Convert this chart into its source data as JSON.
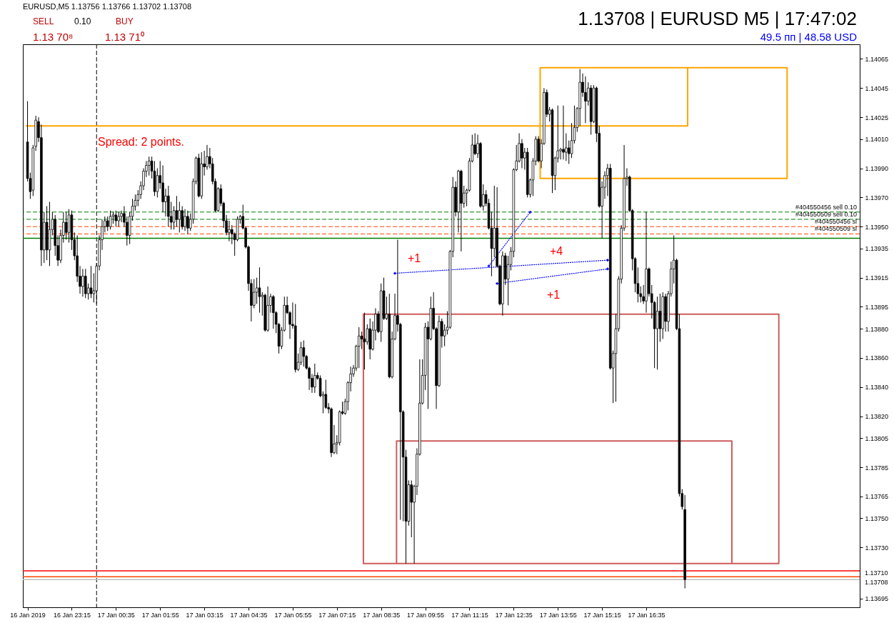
{
  "chart_data": {
    "type": "candlestick",
    "title": "EURUSD,M5 1.13756 1.13766 1.13702 1.13708",
    "color": "#000000",
    "grid": false,
    "annotations": [
      "1.13708 | EURUSD M5 | 17:47:02",
      "49.5 пп | 48.58 USD",
      "SELL",
      "0.10",
      "BUY",
      "1.13 70⁸",
      "1.13 71⁰",
      "Spread: 2 points.",
      "+1",
      "+4",
      "+1"
    ],
    "xlim": [
      "2019-01-16T21:53",
      "2019-01-17T22:55"
    ],
    "xticks": [
      {
        "value": "2019-01-16T21:55",
        "label": "16 Jan 2019"
      },
      {
        "value": "2019-01-16T23:15",
        "label": "16 Jan 23:15"
      },
      {
        "value": "2019-01-17T00:35",
        "label": "17 Jan 00:35"
      },
      {
        "value": "2019-01-17T01:55",
        "label": "17 Jan 01:55"
      },
      {
        "value": "2019-01-17T03:15",
        "label": "17 Jan 03:15"
      },
      {
        "value": "2019-01-17T04:35",
        "label": "17 Jan 04:35"
      },
      {
        "value": "2019-01-17T05:55",
        "label": "17 Jan 05:55"
      },
      {
        "value": "2019-01-17T07:15",
        "label": "17 Jan 07:15"
      },
      {
        "value": "2019-01-17T08:35",
        "label": "17 Jan 08:35"
      },
      {
        "value": "2019-01-17T09:55",
        "label": "17 Jan 09:55"
      },
      {
        "value": "2019-01-17T11:15",
        "label": "17 Jan 11:15"
      },
      {
        "value": "2019-01-17T12:35",
        "label": "17 Jan 12:35"
      },
      {
        "value": "2019-01-17T13:55",
        "label": "17 Jan 13:55"
      },
      {
        "value": "2019-01-17T15:15",
        "label": "17 Jan 15:15"
      },
      {
        "value": "2019-01-17T16:35",
        "label": "17 Jan 16:35"
      }
    ],
    "ylim": [
      1.13689,
      1.14075
    ],
    "yticks": [
      1.14065,
      1.14045,
      1.14025,
      {
        "value": 1.1401,
        "label": "1.14010"
      },
      {
        "value": 1.1399,
        "label": "1.13990"
      },
      {
        "value": 1.1397,
        "label": "1.13970"
      },
      {
        "value": 1.1395,
        "label": "1.13950"
      },
      1.13935,
      1.13915,
      1.13895,
      {
        "value": 1.1388,
        "label": "1.13880"
      },
      {
        "value": 1.1386,
        "label": "1.13860"
      },
      {
        "value": 1.1384,
        "label": "1.13840"
      },
      {
        "value": 1.1382,
        "label": "1.13820"
      },
      1.13805,
      1.13785,
      1.13765,
      {
        "value": 1.1375,
        "label": "1.13750"
      },
      {
        "value": 1.1373,
        "label": "1.13730"
      },
      1.13695
    ],
    "ref_lines": [
      {
        "axis": "x",
        "value": "2019-01-17T00:00",
        "color": "#000000",
        "line_style": "dashed"
      },
      {
        "axis": "y",
        "value": 1.13942,
        "color": "#008000",
        "line_style": "solid"
      },
      {
        "axis": "y",
        "value": 1.1396,
        "label": "#404550456 sell 0.10",
        "color": "#008000",
        "line_style": "dashed"
      },
      {
        "axis": "y",
        "value": 1.13955,
        "label": "#404550509 sell 0.10",
        "color": "#008000",
        "line_style": "dashed"
      },
      {
        "axis": "y",
        "value": 1.1395,
        "label": "#404550456 sl",
        "color": "#ff4500",
        "line_style": "dashed"
      },
      {
        "axis": "y",
        "value": 1.13945,
        "label": "#404550509 sl",
        "color": "#ff4500",
        "line_style": "dashed"
      },
      {
        "axis": "y",
        "value": 1.13714,
        "color": "#ff0000",
        "line_style": "solid"
      },
      {
        "axis": "y",
        "value": 1.1371,
        "label": "1.13710",
        "color": "#ff4500",
        "line_style": "solid"
      },
      {
        "axis": "y",
        "value": 1.13708,
        "label": "1.13708",
        "color": "#c0c0c0",
        "line_style": "solid"
      }
    ],
    "series": [
      {
        "type": "line",
        "color": "#ffa500",
        "line_style": "solid",
        "x": [
          "2019-01-16T21:53",
          "2019-01-17T17:50",
          "2019-01-17T17:50",
          "2019-01-17T20:50",
          "2019-01-17T20:50",
          "2019-01-17T13:23",
          "2019-01-17T13:23",
          "2019-01-17T17:50"
        ],
        "values": [
          1.14019,
          1.14019,
          1.14059,
          1.14059,
          1.13983,
          1.13983,
          1.14059,
          1.14059
        ]
      },
      {
        "type": "line",
        "color": "#cd5c5c",
        "line_style": "solid",
        "x": [
          "2019-01-17T19:10",
          "2019-01-17T20:35",
          "2019-01-17T20:35",
          "2019-01-17T08:03",
          "2019-01-17T08:03",
          "2019-01-17T09:03",
          "2019-01-17T09:03",
          "2019-01-17T19:10",
          "2019-01-17T19:10",
          "2019-01-17T09:03"
        ],
        "values": [
          1.13719,
          1.13719,
          1.1389,
          1.1389,
          1.13719,
          1.13719,
          1.13803,
          1.13803,
          1.13719,
          1.13719
        ]
      },
      {
        "type": "line",
        "color": "#0000ff",
        "line_style": "dotted",
        "marker": "cross",
        "x": [
          "2019-01-17T09:00",
          "2019-01-17T15:25"
        ],
        "values": [
          1.13918,
          1.13927
        ]
      },
      {
        "type": "line",
        "color": "#0000ff",
        "line_style": "dotted",
        "marker": "cross",
        "x": [
          "2019-01-17T11:50",
          "2019-01-17T13:05"
        ],
        "values": [
          1.13923,
          1.1396
        ]
      },
      {
        "type": "line",
        "color": "#0000ff",
        "line_style": "dotted",
        "marker": "cross",
        "x": [
          "2019-01-17T12:05",
          "2019-01-17T15:25"
        ],
        "values": [
          1.13911,
          1.13921
        ]
      }
    ],
    "x": [
      "2019-01-16T21:55",
      "2019-01-16T22:00",
      "2019-01-16T22:05",
      "2019-01-16T22:10",
      "2019-01-16T22:15",
      "2019-01-16T22:20",
      "2019-01-16T22:25",
      "2019-01-16T22:30",
      "2019-01-16T22:35",
      "2019-01-16T22:40",
      "2019-01-16T22:45",
      "2019-01-16T22:50",
      "2019-01-16T22:55",
      "2019-01-16T23:00",
      "2019-01-16T23:05",
      "2019-01-16T23:10",
      "2019-01-16T23:15",
      "2019-01-16T23:20",
      "2019-01-16T23:25",
      "2019-01-16T23:30",
      "2019-01-16T23:35",
      "2019-01-16T23:40",
      "2019-01-16T23:45",
      "2019-01-16T23:50",
      "2019-01-16T23:55",
      "2019-01-17T00:00",
      "2019-01-17T00:05",
      "2019-01-17T00:10",
      "2019-01-17T00:15",
      "2019-01-17T00:20",
      "2019-01-17T00:25",
      "2019-01-17T00:30",
      "2019-01-17T00:35",
      "2019-01-17T00:40",
      "2019-01-17T00:45",
      "2019-01-17T00:50",
      "2019-01-17T00:55",
      "2019-01-17T01:00",
      "2019-01-17T01:05",
      "2019-01-17T01:10",
      "2019-01-17T01:15",
      "2019-01-17T01:20",
      "2019-01-17T01:25",
      "2019-01-17T01:30",
      "2019-01-17T01:35",
      "2019-01-17T01:40",
      "2019-01-17T01:45",
      "2019-01-17T01:50",
      "2019-01-17T01:55",
      "2019-01-17T02:00",
      "2019-01-17T02:05",
      "2019-01-17T02:10",
      "2019-01-17T02:15",
      "2019-01-17T02:20",
      "2019-01-17T02:25",
      "2019-01-17T02:30",
      "2019-01-17T02:35",
      "2019-01-17T02:40",
      "2019-01-17T02:45",
      "2019-01-17T02:50",
      "2019-01-17T02:55",
      "2019-01-17T03:00",
      "2019-01-17T03:05",
      "2019-01-17T03:10",
      "2019-01-17T03:15",
      "2019-01-17T03:20",
      "2019-01-17T03:25",
      "2019-01-17T03:30",
      "2019-01-17T03:35",
      "2019-01-17T03:40",
      "2019-01-17T03:45",
      "2019-01-17T03:50",
      "2019-01-17T03:55",
      "2019-01-17T04:00",
      "2019-01-17T04:05",
      "2019-01-17T04:10",
      "2019-01-17T04:15",
      "2019-01-17T04:20",
      "2019-01-17T04:25",
      "2019-01-17T04:30",
      "2019-01-17T04:35",
      "2019-01-17T04:40",
      "2019-01-17T04:45",
      "2019-01-17T04:50",
      "2019-01-17T04:55",
      "2019-01-17T05:00",
      "2019-01-17T05:05",
      "2019-01-17T05:10",
      "2019-01-17T05:15",
      "2019-01-17T05:20",
      "2019-01-17T05:25",
      "2019-01-17T05:30",
      "2019-01-17T05:35",
      "2019-01-17T05:40",
      "2019-01-17T05:45",
      "2019-01-17T05:50",
      "2019-01-17T05:55",
      "2019-01-17T06:00",
      "2019-01-17T06:05",
      "2019-01-17T06:10",
      "2019-01-17T06:15",
      "2019-01-17T06:20",
      "2019-01-17T06:25",
      "2019-01-17T06:30",
      "2019-01-17T06:35",
      "2019-01-17T06:40",
      "2019-01-17T06:45",
      "2019-01-17T06:50",
      "2019-01-17T06:55",
      "2019-01-17T07:00",
      "2019-01-17T07:05",
      "2019-01-17T07:10",
      "2019-01-17T07:15",
      "2019-01-17T07:20",
      "2019-01-17T07:25",
      "2019-01-17T07:30",
      "2019-01-17T07:35",
      "2019-01-17T07:40",
      "2019-01-17T07:45",
      "2019-01-17T07:50",
      "2019-01-17T07:55",
      "2019-01-17T08:00",
      "2019-01-17T08:05",
      "2019-01-17T08:10",
      "2019-01-17T08:15",
      "2019-01-17T08:20",
      "2019-01-17T08:25",
      "2019-01-17T08:30",
      "2019-01-17T08:35",
      "2019-01-17T08:40",
      "2019-01-17T08:45",
      "2019-01-17T08:50",
      "2019-01-17T08:55",
      "2019-01-17T09:00",
      "2019-01-17T09:05",
      "2019-01-17T09:10",
      "2019-01-17T09:15",
      "2019-01-17T09:20",
      "2019-01-17T09:25",
      "2019-01-17T09:30",
      "2019-01-17T09:35",
      "2019-01-17T09:40",
      "2019-01-17T09:45",
      "2019-01-17T09:50",
      "2019-01-17T09:55",
      "2019-01-17T10:00",
      "2019-01-17T10:05",
      "2019-01-17T10:10",
      "2019-01-17T10:15",
      "2019-01-17T10:20",
      "2019-01-17T10:25",
      "2019-01-17T10:30",
      "2019-01-17T10:35",
      "2019-01-17T10:40",
      "2019-01-17T10:45",
      "2019-01-17T10:50",
      "2019-01-17T10:55",
      "2019-01-17T11:00",
      "2019-01-17T11:05",
      "2019-01-17T11:10",
      "2019-01-17T11:15",
      "2019-01-17T11:20",
      "2019-01-17T11:25",
      "2019-01-17T11:30",
      "2019-01-17T11:35",
      "2019-01-17T11:40",
      "2019-01-17T11:45",
      "2019-01-17T11:50",
      "2019-01-17T11:55",
      "2019-01-17T12:00",
      "2019-01-17T12:05",
      "2019-01-17T12:10",
      "2019-01-17T12:15",
      "2019-01-17T12:20",
      "2019-01-17T12:25",
      "2019-01-17T12:30",
      "2019-01-17T12:35",
      "2019-01-17T12:40",
      "2019-01-17T12:45",
      "2019-01-17T12:50",
      "2019-01-17T12:55",
      "2019-01-17T13:00",
      "2019-01-17T13:05",
      "2019-01-17T13:10",
      "2019-01-17T13:15",
      "2019-01-17T13:20",
      "2019-01-17T13:25",
      "2019-01-17T13:30",
      "2019-01-17T13:35",
      "2019-01-17T13:40",
      "2019-01-17T13:45",
      "2019-01-17T13:50",
      "2019-01-17T13:55",
      "2019-01-17T14:00",
      "2019-01-17T14:05",
      "2019-01-17T14:10",
      "2019-01-17T14:15",
      "2019-01-17T14:20",
      "2019-01-17T14:25",
      "2019-01-17T14:30",
      "2019-01-17T14:35",
      "2019-01-17T14:40",
      "2019-01-17T14:45",
      "2019-01-17T14:50",
      "2019-01-17T14:55",
      "2019-01-17T15:00",
      "2019-01-17T15:05",
      "2019-01-17T15:10",
      "2019-01-17T15:15",
      "2019-01-17T15:20",
      "2019-01-17T15:25",
      "2019-01-17T15:30",
      "2019-01-17T15:35",
      "2019-01-17T15:40",
      "2019-01-17T15:45",
      "2019-01-17T15:50",
      "2019-01-17T15:55",
      "2019-01-17T16:00",
      "2019-01-17T16:05",
      "2019-01-17T16:10",
      "2019-01-17T16:15",
      "2019-01-17T16:20",
      "2019-01-17T16:25",
      "2019-01-17T16:30",
      "2019-01-17T16:35",
      "2019-01-17T16:40",
      "2019-01-17T16:45",
      "2019-01-17T16:50",
      "2019-01-17T16:55",
      "2019-01-17T17:00",
      "2019-01-17T17:05",
      "2019-01-17T17:10",
      "2019-01-17T17:15",
      "2019-01-17T17:20",
      "2019-01-17T17:25",
      "2019-01-17T17:30",
      "2019-01-17T17:35",
      "2019-01-17T17:40",
      "2019-01-17T17:45"
    ],
    "ohlc": [
      [
        1.14008,
        1.14036,
        1.13981,
        1.13983
      ],
      [
        1.13983,
        1.13987,
        1.13969,
        1.13974
      ],
      [
        1.13975,
        1.14006,
        1.13971,
        1.14004
      ],
      [
        1.14005,
        1.14026,
        1.14002,
        1.14023
      ],
      [
        1.14022,
        1.14025,
        1.14008,
        1.14011
      ],
      [
        1.14011,
        1.1402,
        1.13923,
        1.13934
      ],
      [
        1.13934,
        1.1396,
        1.13925,
        1.13953
      ],
      [
        1.13953,
        1.13964,
        1.13927,
        1.13934
      ],
      [
        1.13934,
        1.13967,
        1.13923,
        1.13948
      ],
      [
        1.13948,
        1.1396,
        1.13944,
        1.13955
      ],
      [
        1.13955,
        1.13958,
        1.1393,
        1.13937
      ],
      [
        1.13937,
        1.13944,
        1.13923,
        1.13927
      ],
      [
        1.13927,
        1.13948,
        1.13925,
        1.13944
      ],
      [
        1.13944,
        1.1396,
        1.13939,
        1.13953
      ],
      [
        1.13953,
        1.1396,
        1.13941,
        1.13946
      ],
      [
        1.13946,
        1.13962,
        1.13939,
        1.13958
      ],
      [
        1.13958,
        1.13961,
        1.13934,
        1.13941
      ],
      [
        1.13941,
        1.13946,
        1.13927,
        1.1393
      ],
      [
        1.1393,
        1.13944,
        1.13912,
        1.13916
      ],
      [
        1.13916,
        1.13923,
        1.13904,
        1.13909
      ],
      [
        1.13909,
        1.13921,
        1.13902,
        1.13916
      ],
      [
        1.13916,
        1.13921,
        1.13901,
        1.13904
      ],
      [
        1.13904,
        1.13911,
        1.139,
        1.13908
      ],
      [
        1.13908,
        1.13923,
        1.13901,
        1.13904
      ],
      [
        1.13904,
        1.13918,
        1.13898,
        1.13906
      ],
      [
        1.13906,
        1.13925,
        1.13897,
        1.13923
      ],
      [
        1.13923,
        1.13944,
        1.1392,
        1.13941
      ],
      [
        1.13941,
        1.13955,
        1.13934,
        1.1395
      ],
      [
        1.1395,
        1.13957,
        1.13946,
        1.13954
      ],
      [
        1.13954,
        1.13957,
        1.13947,
        1.1395
      ],
      [
        1.1395,
        1.13961,
        1.13948,
        1.13957
      ],
      [
        1.13957,
        1.1396,
        1.13952,
        1.13958
      ],
      [
        1.13958,
        1.13961,
        1.1395,
        1.13954
      ],
      [
        1.13954,
        1.1396,
        1.1395,
        1.13957
      ],
      [
        1.13957,
        1.13961,
        1.13953,
        1.13959
      ],
      [
        1.13959,
        1.13964,
        1.1395,
        1.13953
      ],
      [
        1.13953,
        1.13957,
        1.13937,
        1.13944
      ],
      [
        1.13944,
        1.1396,
        1.13938,
        1.13957
      ],
      [
        1.13957,
        1.13969,
        1.13954,
        1.13964
      ],
      [
        1.13964,
        1.13972,
        1.13961,
        1.13968
      ],
      [
        1.13968,
        1.13975,
        1.13964,
        1.13972
      ],
      [
        1.13972,
        1.13981,
        1.13969,
        1.13978
      ],
      [
        1.13978,
        1.1399,
        1.13975,
        1.13988
      ],
      [
        1.13988,
        1.13995,
        1.13984,
        1.13992
      ],
      [
        1.13992,
        1.13998,
        1.13985,
        1.13995
      ],
      [
        1.13995,
        1.13998,
        1.13983,
        1.13988
      ],
      [
        1.13988,
        1.13995,
        1.13971,
        1.13974
      ],
      [
        1.13974,
        1.1399,
        1.1397,
        1.13985
      ],
      [
        1.13985,
        1.13995,
        1.13976,
        1.1398
      ],
      [
        1.1398,
        1.13992,
        1.1396,
        1.13967
      ],
      [
        1.13967,
        1.13976,
        1.13957,
        1.13971
      ],
      [
        1.13971,
        1.13978,
        1.1395,
        1.13957
      ],
      [
        1.13957,
        1.13967,
        1.13948,
        1.13953
      ],
      [
        1.13953,
        1.13964,
        1.13948,
        1.13961
      ],
      [
        1.13961,
        1.13971,
        1.1395,
        1.13955
      ],
      [
        1.13955,
        1.13967,
        1.13946,
        1.13961
      ],
      [
        1.13961,
        1.13964,
        1.13948,
        1.1395
      ],
      [
        1.1395,
        1.13962,
        1.13947,
        1.13957
      ],
      [
        1.13957,
        1.13961,
        1.13945,
        1.13949
      ],
      [
        1.13949,
        1.13959,
        1.13947,
        1.13955
      ],
      [
        1.13955,
        1.13983,
        1.13952,
        1.13981
      ],
      [
        1.13981,
        1.13998,
        1.13979,
        1.13997
      ],
      [
        1.13997,
        1.14,
        1.1397,
        1.13971
      ],
      [
        1.13971,
        1.14001,
        1.13969,
        1.13993
      ],
      [
        1.13993,
        1.14002,
        1.13985,
        1.13991
      ],
      [
        1.13991,
        1.14006,
        1.13989,
        1.13998
      ],
      [
        1.13998,
        1.14004,
        1.1399,
        1.13993
      ],
      [
        1.13993,
        1.13997,
        1.13979,
        1.13981
      ],
      [
        1.13981,
        1.13983,
        1.1396,
        1.13961
      ],
      [
        1.13961,
        1.13977,
        1.1396,
        1.13976
      ],
      [
        1.13976,
        1.13979,
        1.13964,
        1.13966
      ],
      [
        1.13966,
        1.13967,
        1.13949,
        1.13954
      ],
      [
        1.13954,
        1.13958,
        1.13944,
        1.13946
      ],
      [
        1.13946,
        1.13954,
        1.1394,
        1.13948
      ],
      [
        1.13948,
        1.13951,
        1.13938,
        1.13945
      ],
      [
        1.13945,
        1.13946,
        1.1393,
        1.13941
      ],
      [
        1.13941,
        1.13957,
        1.1394,
        1.13955
      ],
      [
        1.13955,
        1.13958,
        1.13952,
        1.13957
      ],
      [
        1.13957,
        1.13965,
        1.13948,
        1.13949
      ],
      [
        1.13949,
        1.1395,
        1.13935,
        1.13936
      ],
      [
        1.13936,
        1.13937,
        1.13906,
        1.13911
      ],
      [
        1.13911,
        1.13914,
        1.13885,
        1.13896
      ],
      [
        1.13896,
        1.13914,
        1.13894,
        1.13905
      ],
      [
        1.13905,
        1.13915,
        1.13897,
        1.13908
      ],
      [
        1.13908,
        1.13922,
        1.13891,
        1.13902
      ],
      [
        1.13902,
        1.13905,
        1.13889,
        1.13903
      ],
      [
        1.13903,
        1.13904,
        1.13878,
        1.13879
      ],
      [
        1.13879,
        1.13909,
        1.13878,
        1.13896
      ],
      [
        1.13896,
        1.13904,
        1.13891,
        1.13902
      ],
      [
        1.13902,
        1.13903,
        1.1388,
        1.13891
      ],
      [
        1.13891,
        1.13892,
        1.13877,
        1.13883
      ],
      [
        1.13883,
        1.13884,
        1.13863,
        1.13868
      ],
      [
        1.13868,
        1.13881,
        1.13866,
        1.13879
      ],
      [
        1.13879,
        1.13902,
        1.13878,
        1.13896
      ],
      [
        1.13896,
        1.13902,
        1.1389,
        1.13891
      ],
      [
        1.13891,
        1.13892,
        1.13873,
        1.13883
      ],
      [
        1.13883,
        1.13898,
        1.1388,
        1.13882
      ],
      [
        1.13882,
        1.13897,
        1.1385,
        1.13852
      ],
      [
        1.13852,
        1.13863,
        1.13851,
        1.13857
      ],
      [
        1.13857,
        1.13871,
        1.13855,
        1.13867
      ],
      [
        1.13867,
        1.13872,
        1.13854,
        1.13861
      ],
      [
        1.13861,
        1.13862,
        1.13852,
        1.13853
      ],
      [
        1.13853,
        1.13854,
        1.13838,
        1.13846
      ],
      [
        1.13846,
        1.13849,
        1.13836,
        1.1384
      ],
      [
        1.1384,
        1.13856,
        1.13836,
        1.13848
      ],
      [
        1.13848,
        1.1385,
        1.13845,
        1.13846
      ],
      [
        1.13846,
        1.13848,
        1.13833,
        1.13834
      ],
      [
        1.13834,
        1.13837,
        1.13822,
        1.13835
      ],
      [
        1.13835,
        1.13845,
        1.13825,
        1.13826
      ],
      [
        1.13826,
        1.13829,
        1.13822,
        1.13825
      ],
      [
        1.13825,
        1.13826,
        1.13792,
        1.13795
      ],
      [
        1.13795,
        1.13814,
        1.13794,
        1.13801
      ],
      [
        1.13801,
        1.13807,
        1.13794,
        1.13802
      ],
      [
        1.13802,
        1.13824,
        1.138,
        1.13823
      ],
      [
        1.13823,
        1.1383,
        1.13821,
        1.13822
      ],
      [
        1.13822,
        1.13832,
        1.13821,
        1.1383
      ],
      [
        1.1383,
        1.13844,
        1.13824,
        1.13843
      ],
      [
        1.13843,
        1.13854,
        1.13837,
        1.13849
      ],
      [
        1.13849,
        1.13855,
        1.13847,
        1.13853
      ],
      [
        1.13853,
        1.13869,
        1.13851,
        1.13868
      ],
      [
        1.13868,
        1.13881,
        1.13853,
        1.13875
      ],
      [
        1.13875,
        1.13878,
        1.13866,
        1.13873
      ],
      [
        1.13873,
        1.13891,
        1.13852,
        1.13871
      ],
      [
        1.13871,
        1.13883,
        1.13869,
        1.1388
      ],
      [
        1.1388,
        1.13887,
        1.13859,
        1.13866
      ],
      [
        1.13866,
        1.13885,
        1.13865,
        1.13879
      ],
      [
        1.13879,
        1.13894,
        1.13872,
        1.1389
      ],
      [
        1.1389,
        1.13892,
        1.13877,
        1.13878
      ],
      [
        1.13878,
        1.13911,
        1.13871,
        1.13906
      ],
      [
        1.13906,
        1.13915,
        1.13886,
        1.13887
      ],
      [
        1.13887,
        1.13902,
        1.13886,
        1.1389
      ],
      [
        1.1389,
        1.13904,
        1.13846,
        1.13847
      ],
      [
        1.13847,
        1.13878,
        1.13846,
        1.13873
      ],
      [
        1.13873,
        1.13904,
        1.13872,
        1.13889
      ],
      [
        1.13889,
        1.13941,
        1.13878,
        1.13883
      ],
      [
        1.13883,
        1.13884,
        1.13749,
        1.13823
      ],
      [
        1.13823,
        1.13824,
        1.13748,
        1.13792
      ],
      [
        1.13792,
        1.13797,
        1.13719,
        1.13748
      ],
      [
        1.13748,
        1.13776,
        1.13745,
        1.13773
      ],
      [
        1.13773,
        1.13776,
        1.13737,
        1.13761
      ],
      [
        1.13761,
        1.13773,
        1.13719,
        1.13772
      ],
      [
        1.13772,
        1.13798,
        1.13766,
        1.13794
      ],
      [
        1.13794,
        1.13859,
        1.13793,
        1.13829
      ],
      [
        1.13829,
        1.13859,
        1.13828,
        1.13848
      ],
      [
        1.13848,
        1.13884,
        1.13838,
        1.13881
      ],
      [
        1.13881,
        1.13885,
        1.13825,
        1.13873
      ],
      [
        1.13873,
        1.13902,
        1.13872,
        1.13894
      ],
      [
        1.13894,
        1.13905,
        1.13879,
        1.1388
      ],
      [
        1.1388,
        1.13881,
        1.13825,
        1.13841
      ],
      [
        1.13841,
        1.13889,
        1.1384,
        1.13885
      ],
      [
        1.13885,
        1.13887,
        1.13867,
        1.13875
      ],
      [
        1.13875,
        1.13883,
        1.13868,
        1.13879
      ],
      [
        1.13879,
        1.13892,
        1.13876,
        1.13881
      ],
      [
        1.13881,
        1.13934,
        1.1388,
        1.13933
      ],
      [
        1.13933,
        1.13984,
        1.13929,
        1.13977
      ],
      [
        1.13977,
        1.13981,
        1.13957,
        1.1396
      ],
      [
        1.1396,
        1.13989,
        1.13946,
        1.13988
      ],
      [
        1.13988,
        1.13989,
        1.13933,
        1.13966
      ],
      [
        1.13966,
        1.13978,
        1.13963,
        1.13973
      ],
      [
        1.13973,
        1.13976,
        1.13964,
        1.13975
      ],
      [
        1.13975,
        1.13997,
        1.13974,
        1.13995
      ],
      [
        1.13995,
        1.14013,
        1.13994,
        1.14006
      ],
      [
        1.14006,
        1.14014,
        1.13999,
        1.14
      ],
      [
        1.14,
        1.14013,
        1.13997,
        1.14007
      ],
      [
        1.14007,
        1.14008,
        1.13963,
        1.13964
      ],
      [
        1.13964,
        1.13979,
        1.13961,
        1.13972
      ],
      [
        1.13972,
        1.13975,
        1.13964,
        1.13966
      ],
      [
        1.13966,
        1.13969,
        1.13948,
        1.13949
      ],
      [
        1.13949,
        1.1396,
        1.13916,
        1.13935
      ],
      [
        1.13935,
        1.13978,
        1.13929,
        1.13949
      ],
      [
        1.13949,
        1.13977,
        1.13922,
        1.13923
      ],
      [
        1.13923,
        1.13924,
        1.13896,
        1.13897
      ],
      [
        1.13897,
        1.13933,
        1.13889,
        1.1393
      ],
      [
        1.1393,
        1.13932,
        1.1391,
        1.13914
      ],
      [
        1.13914,
        1.1393,
        1.13896,
        1.13924
      ],
      [
        1.13924,
        1.13936,
        1.1392,
        1.13933
      ],
      [
        1.13933,
        1.1399,
        1.13929,
        1.13989
      ],
      [
        1.13989,
        1.14006,
        1.13988,
        1.13995
      ],
      [
        1.13995,
        1.14014,
        1.13994,
        1.14007
      ],
      [
        1.14007,
        1.1401,
        1.1399,
        1.13997
      ],
      [
        1.13997,
        1.14004,
        1.13989,
        1.14001
      ],
      [
        1.14001,
        1.14004,
        1.1397,
        1.13972
      ],
      [
        1.13972,
        1.13983,
        1.1397,
        1.13982
      ],
      [
        1.13982,
        1.13997,
        1.13971,
        1.13995
      ],
      [
        1.13995,
        1.14012,
        1.13992,
        1.1401
      ],
      [
        1.1401,
        1.14012,
        1.13994,
        1.13995
      ],
      [
        1.13995,
        1.1401,
        1.1399,
        1.14007
      ],
      [
        1.14007,
        1.14045,
        1.14006,
        1.14042
      ],
      [
        1.14042,
        1.14044,
        1.14025,
        1.14027
      ],
      [
        1.14027,
        1.14032,
        1.14022,
        1.1403
      ],
      [
        1.1403,
        1.14031,
        1.13973,
        1.13985
      ],
      [
        1.13985,
        1.13998,
        1.13975,
        1.13997
      ],
      [
        1.13997,
        1.14033,
        1.13994,
        1.14002
      ],
      [
        1.14002,
        1.14004,
        1.13996,
        1.14003
      ],
      [
        1.14003,
        1.14033,
        1.13996,
        1.14001
      ],
      [
        1.14001,
        1.14014,
        1.13995,
        1.14004
      ],
      [
        1.14004,
        1.14009,
        1.13993,
        1.14
      ],
      [
        1.14,
        1.14021,
        1.13997,
        1.14009
      ],
      [
        1.14009,
        1.14033,
        1.14007,
        1.14018
      ],
      [
        1.14018,
        1.14032,
        1.14015,
        1.14031
      ],
      [
        1.14031,
        1.14058,
        1.14019,
        1.14049
      ],
      [
        1.14049,
        1.14055,
        1.14039,
        1.14042
      ],
      [
        1.14042,
        1.14053,
        1.14021,
        1.14036
      ],
      [
        1.14036,
        1.14049,
        1.14033,
        1.14045
      ],
      [
        1.14045,
        1.14047,
        1.14013,
        1.14022
      ],
      [
        1.14022,
        1.14047,
        1.14021,
        1.14045
      ],
      [
        1.14045,
        1.14046,
        1.14008,
        1.14014
      ],
      [
        1.14014,
        1.14019,
        1.13963,
        1.13964
      ],
      [
        1.13964,
        1.13981,
        1.13942,
        1.13977
      ],
      [
        1.13977,
        1.13988,
        1.13969,
        1.13985
      ],
      [
        1.13985,
        1.13993,
        1.13971,
        1.1399
      ],
      [
        1.1399,
        1.13993,
        1.13852,
        1.13853
      ],
      [
        1.13853,
        1.13865,
        1.13829,
        1.13863
      ],
      [
        1.13863,
        1.1389,
        1.1383,
        1.1388
      ],
      [
        1.1388,
        1.13916,
        1.13878,
        1.13914
      ],
      [
        1.13914,
        1.13951,
        1.13911,
        1.13949
      ],
      [
        1.13949,
        1.14006,
        1.13947,
        1.13983
      ],
      [
        1.13983,
        1.1399,
        1.13978,
        1.13984
      ],
      [
        1.13984,
        1.13985,
        1.1396,
        1.13961
      ],
      [
        1.13961,
        1.13962,
        1.1392,
        1.13928
      ],
      [
        1.13928,
        1.13929,
        1.13905,
        1.13911
      ],
      [
        1.13911,
        1.13922,
        1.13898,
        1.13904
      ],
      [
        1.13904,
        1.13909,
        1.13898,
        1.13902
      ],
      [
        1.13902,
        1.1391,
        1.13897,
        1.13899
      ],
      [
        1.13899,
        1.1396,
        1.13891,
        1.13921
      ],
      [
        1.13921,
        1.13922,
        1.13902,
        1.13904
      ],
      [
        1.13904,
        1.1391,
        1.13887,
        1.13898
      ],
      [
        1.13898,
        1.13899,
        1.13853,
        1.1388
      ],
      [
        1.1388,
        1.13902,
        1.13852,
        1.13892
      ],
      [
        1.13892,
        1.13904,
        1.13871,
        1.1388
      ],
      [
        1.1388,
        1.13905,
        1.13873,
        1.13902
      ],
      [
        1.13902,
        1.13904,
        1.13878,
        1.13885
      ],
      [
        1.13885,
        1.13906,
        1.13878,
        1.13904
      ],
      [
        1.13904,
        1.13926,
        1.13902,
        1.13921
      ],
      [
        1.13921,
        1.13944,
        1.13911,
        1.13927
      ],
      [
        1.13927,
        1.13928,
        1.13879,
        1.1388
      ],
      [
        1.1388,
        1.1389,
        1.13765,
        1.13767
      ],
      [
        1.13767,
        1.1377,
        1.13756,
        1.13758
      ],
      [
        1.13756,
        1.13766,
        1.13702,
        1.13708
      ]
    ]
  }
}
